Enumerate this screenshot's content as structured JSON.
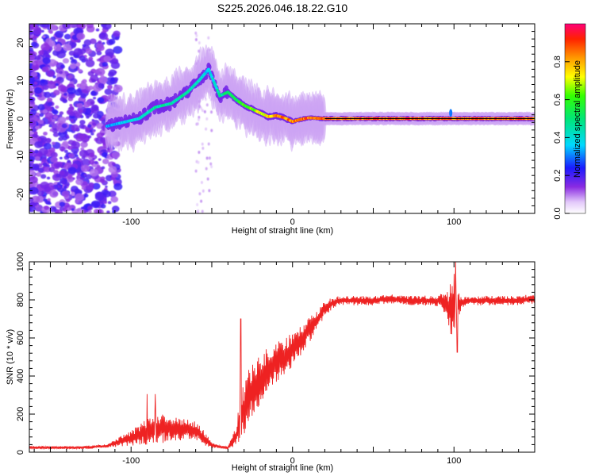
{
  "title": "S225.2026.046.18.22.G10",
  "colors": {
    "snr_line": "#ee2222",
    "spec_purple": "#7a1fe6",
    "spec_light": "#d7b8f6",
    "frame": "#000000"
  },
  "chart_data": [
    {
      "type": "heatmap",
      "name": "spectrogram",
      "title": "",
      "xlabel": "Height of straight line (km)",
      "ylabel": "Frequency (Hz)",
      "xlim": [
        -163,
        150
      ],
      "ylim": [
        -25,
        25
      ],
      "xticks": [
        -100,
        0,
        100
      ],
      "xtick_labels": [
        "-100",
        "0",
        "100"
      ],
      "yticks": [
        20,
        10,
        0,
        -10,
        -20
      ],
      "ytick_labels": [
        "20",
        "10",
        "0",
        "-10",
        "-20"
      ],
      "ridge": {
        "x": [
          -115,
          -105,
          -95,
          -85,
          -75,
          -65,
          -58,
          -52,
          -45,
          -40,
          -35,
          -30,
          -25,
          -20,
          -15,
          -10,
          -5,
          0,
          5,
          10,
          20,
          40,
          60,
          80,
          100,
          120,
          148
        ],
        "freq": [
          -2,
          -1,
          0,
          3,
          4,
          7,
          10,
          13,
          6,
          7,
          5,
          3.5,
          2.5,
          1.5,
          0.5,
          0.8,
          0.2,
          -0.8,
          -0.2,
          0.2,
          0,
          0,
          0,
          0,
          0,
          0,
          0
        ],
        "amplitude": [
          0.35,
          0.4,
          0.45,
          0.5,
          0.5,
          0.5,
          0.45,
          0.4,
          0.5,
          0.55,
          0.6,
          0.65,
          0.7,
          0.8,
          0.85,
          0.9,
          0.95,
          0.9,
          0.95,
          0.95,
          0.95,
          0.95,
          0.95,
          0.95,
          0.95,
          0.95,
          0.95
        ]
      },
      "colorbar": {
        "label": "Normalized spectral amplitude",
        "range": [
          0,
          1
        ],
        "ticks": [
          0.0,
          0.2,
          0.4,
          0.6,
          0.8
        ],
        "tick_labels": [
          "0.0",
          "0.2",
          "0.4",
          "0.6",
          "0.8"
        ]
      }
    },
    {
      "type": "line",
      "name": "snr",
      "title": "",
      "xlabel": "Height of straight line (km)",
      "ylabel": "SNR (10 * v/v)",
      "xlim": [
        -163,
        150
      ],
      "ylim": [
        0,
        1000
      ],
      "xticks": [
        -100,
        0,
        100
      ],
      "xtick_labels": [
        "-100",
        "0",
        "100"
      ],
      "yticks": [
        0,
        200,
        400,
        600,
        800,
        1000
      ],
      "ytick_labels": [
        "0",
        "200",
        "400",
        "600",
        "800",
        "1000"
      ],
      "series": [
        {
          "name": "SNR",
          "envelope_x": [
            -163,
            -130,
            -115,
            -100,
            -90,
            -80,
            -70,
            -60,
            -55,
            -50,
            -45,
            -40,
            -35,
            -32,
            -28,
            -24,
            -20,
            -15,
            -10,
            -5,
            0,
            5,
            10,
            15,
            20,
            25,
            30,
            40,
            50,
            60,
            70,
            80,
            90,
            95,
            98,
            100,
            102,
            105,
            110,
            120,
            130,
            140,
            150
          ],
          "envelope_y": [
            25,
            25,
            35,
            80,
            120,
            140,
            130,
            120,
            80,
            40,
            30,
            25,
            90,
            200,
            300,
            360,
            400,
            450,
            480,
            520,
            550,
            600,
            650,
            700,
            760,
            790,
            800,
            800,
            800,
            810,
            800,
            800,
            800,
            790,
            760,
            800,
            780,
            790,
            800,
            800,
            800,
            800,
            810
          ],
          "noise_amp": [
            8,
            8,
            10,
            40,
            70,
            80,
            60,
            50,
            40,
            15,
            8,
            10,
            60,
            130,
            140,
            140,
            130,
            120,
            110,
            100,
            90,
            80,
            70,
            50,
            40,
            30,
            25,
            25,
            25,
            25,
            25,
            25,
            30,
            60,
            150,
            200,
            80,
            30,
            25,
            25,
            25,
            25,
            25
          ],
          "notable_peaks": [
            {
              "x": -32,
              "y": 700
            },
            {
              "x": -90,
              "y": 305
            },
            {
              "x": -85,
              "y": 305
            },
            {
              "x": 101,
              "y": 1000
            },
            {
              "x": 102,
              "y": 525
            }
          ]
        }
      ]
    }
  ]
}
